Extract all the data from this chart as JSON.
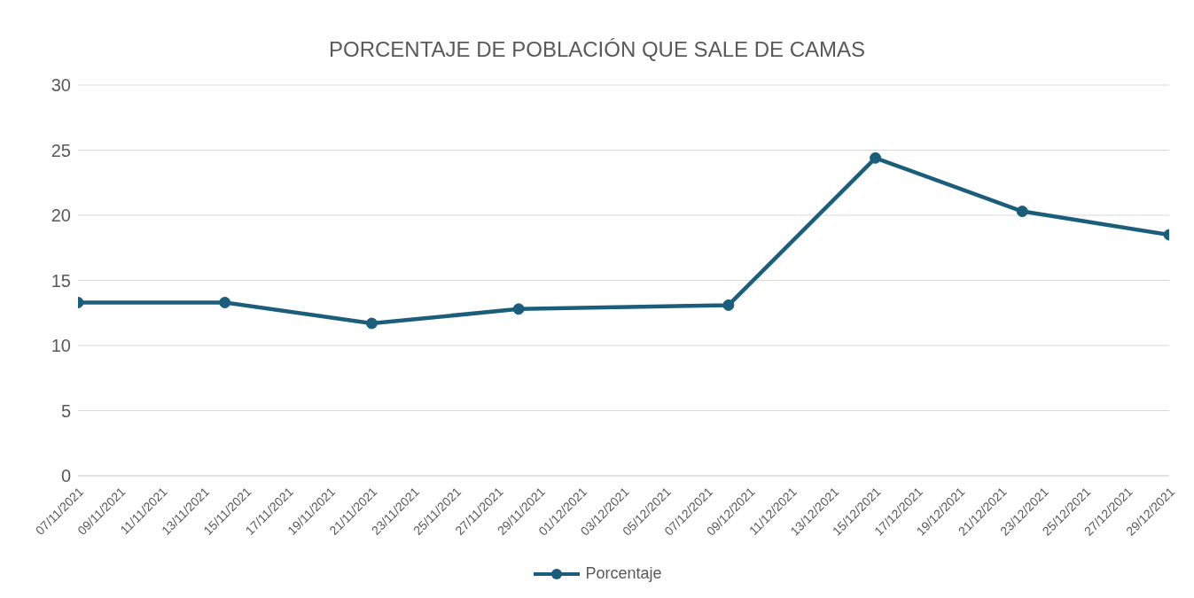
{
  "chart_data": {
    "type": "line",
    "title": "PORCENTAJE DE POBLACIÓN QUE SALE DE CAMAS",
    "x": [
      "2021-11-07",
      "2021-11-14",
      "2021-11-21",
      "2021-11-28",
      "2021-12-08",
      "2021-12-15",
      "2021-12-22",
      "2021-12-29"
    ],
    "series": [
      {
        "name": "Porcentaje",
        "color": "#1b5e7b",
        "values": [
          13.3,
          13.3,
          11.7,
          12.8,
          13.1,
          24.4,
          20.3,
          18.5
        ]
      }
    ],
    "xlim": [
      "2021-11-07",
      "2021-12-29"
    ],
    "xticks": [
      {
        "value": "2021-11-07",
        "label": "07/11/2021"
      },
      {
        "value": "2021-11-09",
        "label": "09/11/2021"
      },
      {
        "value": "2021-11-11",
        "label": "11/11/2021"
      },
      {
        "value": "2021-11-13",
        "label": "13/11/2021"
      },
      {
        "value": "2021-11-15",
        "label": "15/11/2021"
      },
      {
        "value": "2021-11-17",
        "label": "17/11/2021"
      },
      {
        "value": "2021-11-19",
        "label": "19/11/2021"
      },
      {
        "value": "2021-11-21",
        "label": "21/11/2021"
      },
      {
        "value": "2021-11-23",
        "label": "23/11/2021"
      },
      {
        "value": "2021-11-25",
        "label": "25/11/2021"
      },
      {
        "value": "2021-11-27",
        "label": "27/11/2021"
      },
      {
        "value": "2021-11-29",
        "label": "29/11/2021"
      },
      {
        "value": "2021-12-01",
        "label": "01/12/2021"
      },
      {
        "value": "2021-12-03",
        "label": "03/12/2021"
      },
      {
        "value": "2021-12-05",
        "label": "05/12/2021"
      },
      {
        "value": "2021-12-07",
        "label": "07/12/2021"
      },
      {
        "value": "2021-12-09",
        "label": "09/12/2021"
      },
      {
        "value": "2021-12-11",
        "label": "11/12/2021"
      },
      {
        "value": "2021-12-13",
        "label": "13/12/2021"
      },
      {
        "value": "2021-12-15",
        "label": "15/12/2021"
      },
      {
        "value": "2021-12-17",
        "label": "17/12/2021"
      },
      {
        "value": "2021-12-19",
        "label": "19/12/2021"
      },
      {
        "value": "2021-12-21",
        "label": "21/12/2021"
      },
      {
        "value": "2021-12-23",
        "label": "23/12/2021"
      },
      {
        "value": "2021-12-25",
        "label": "25/12/2021"
      },
      {
        "value": "2021-12-27",
        "label": "27/12/2021"
      },
      {
        "value": "2021-12-29",
        "label": "29/12/2021"
      }
    ],
    "ylim": [
      0,
      30
    ],
    "yticks": [
      0,
      5,
      10,
      15,
      20,
      25,
      30
    ],
    "grid": "y",
    "legend": "bottom",
    "marker": "circle",
    "line_style": "solid"
  }
}
